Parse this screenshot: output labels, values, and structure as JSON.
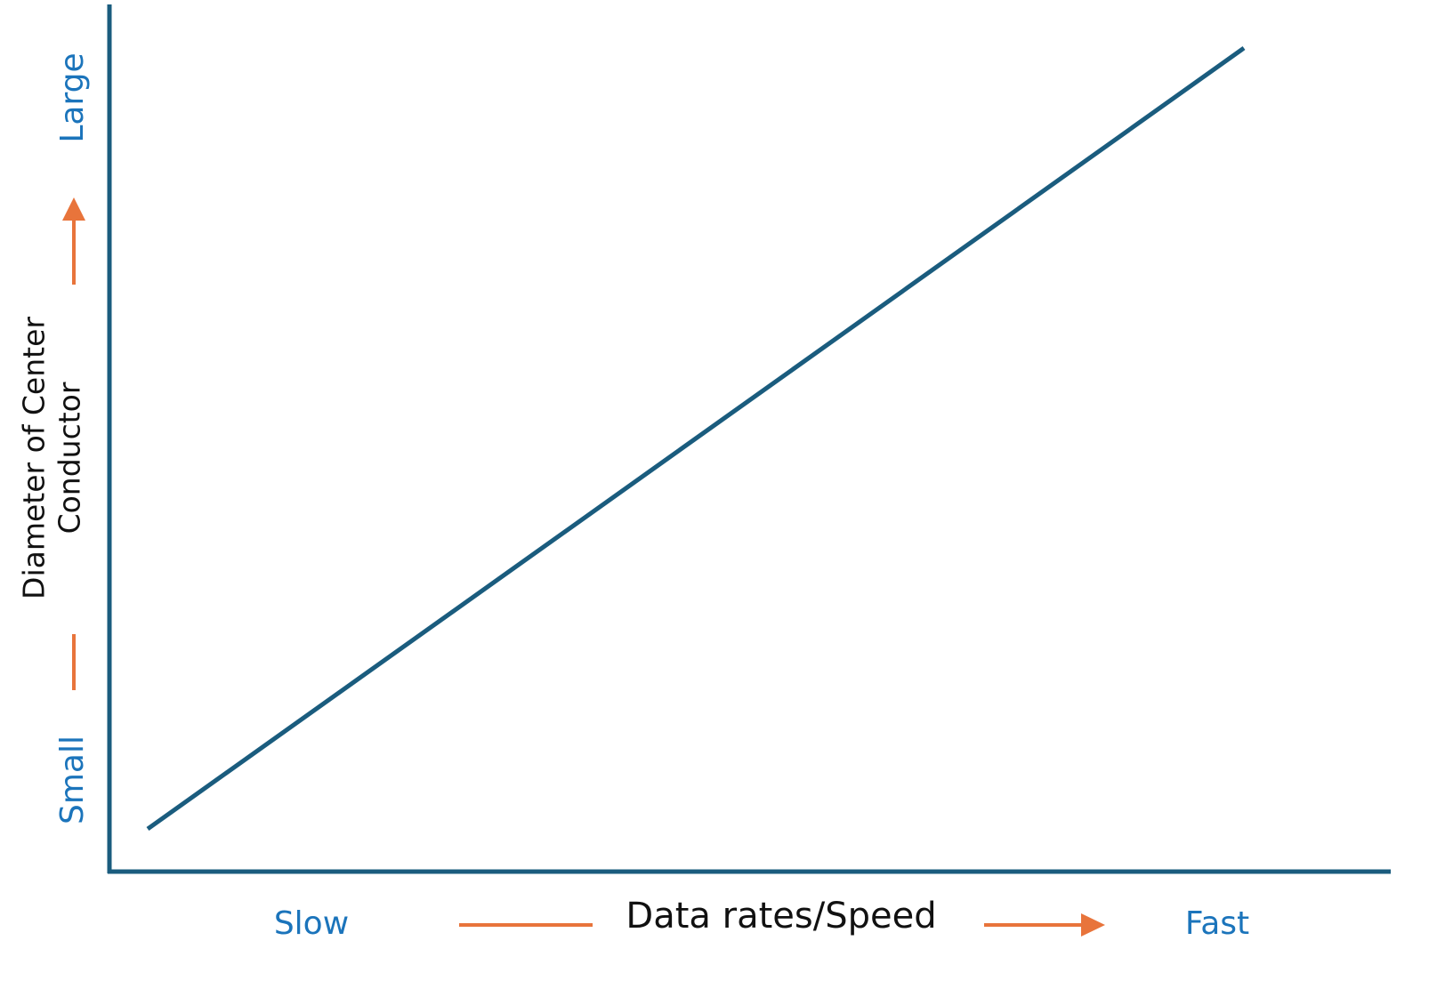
{
  "y_axis": {
    "label_lines": [
      "Diameter of Center",
      "Conductor"
    ],
    "high": "Large",
    "low": "Small"
  },
  "x_axis": {
    "label": "Data rates/Speed",
    "low": "Slow",
    "high": "Fast"
  }
}
